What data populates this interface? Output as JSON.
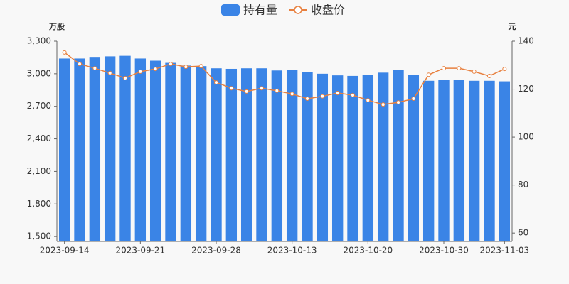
{
  "chart_data": {
    "type": "bar_line",
    "categories": [
      "2023-09-14",
      null,
      null,
      null,
      null,
      "2023-09-21",
      null,
      null,
      null,
      null,
      "2023-09-28",
      null,
      null,
      null,
      null,
      "2023-10-13",
      null,
      null,
      null,
      null,
      "2023-10-20",
      null,
      null,
      null,
      null,
      "2023-10-30",
      null,
      null,
      null,
      "2023-11-03"
    ],
    "series": [
      {
        "name": "持有量",
        "color": "#3a84e6",
        "type": "bar",
        "axis": "y",
        "values": [
          3140,
          3140,
          3155,
          3160,
          3165,
          3140,
          3120,
          3100,
          3075,
          3070,
          3050,
          3045,
          3050,
          3050,
          3030,
          3035,
          3015,
          3000,
          2985,
          2980,
          2990,
          3010,
          3035,
          2990,
          2935,
          2945,
          2945,
          2935,
          2935,
          2930
        ]
      },
      {
        "name": "收盘价",
        "color": "#e8803f",
        "type": "line",
        "axis": "y2",
        "values": [
          135.3,
          130.5,
          128.7,
          126.7,
          124.6,
          127.3,
          128.4,
          130.5,
          129.3,
          129.6,
          122.8,
          120.4,
          119.0,
          120.4,
          119.3,
          118.0,
          116.0,
          117.0,
          118.4,
          117.5,
          115.4,
          113.6,
          114.5,
          116.0,
          126.0,
          128.7,
          128.7,
          127.3,
          125.5,
          128.4
        ]
      }
    ],
    "y_label": "万股",
    "y2_label": "元",
    "ylim": [
      1455,
      3300
    ],
    "yticks": [
      {
        "value": 1500,
        "label": "1,500"
      },
      {
        "value": 1800,
        "label": "1,800"
      },
      {
        "value": 2100,
        "label": "2,100"
      },
      {
        "value": 2400,
        "label": "2,400"
      },
      {
        "value": 2700,
        "label": "2,700"
      },
      {
        "value": 3000,
        "label": "3,000"
      },
      {
        "value": 3300,
        "label": "3,300"
      }
    ],
    "y2lim": [
      56.5,
      140
    ],
    "y2ticks": [
      60,
      80,
      100,
      120,
      140
    ]
  }
}
